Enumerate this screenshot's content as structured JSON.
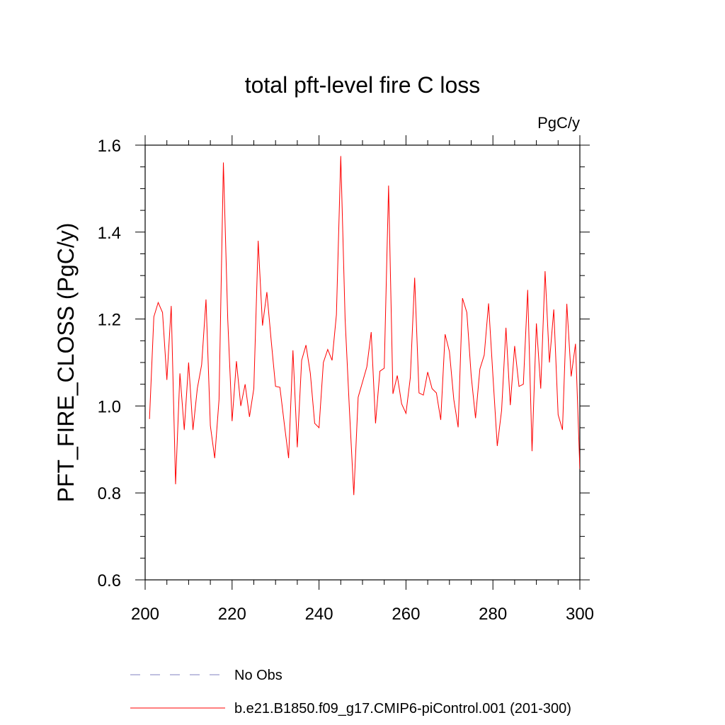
{
  "chart_data": {
    "type": "line",
    "title": "total pft-level fire C loss",
    "units_label": "PgC/y",
    "xlabel": "",
    "ylabel": "PFT_FIRE_CLOSS  (PgC/y)",
    "xlim": [
      200,
      300
    ],
    "ylim": [
      0.6,
      1.6
    ],
    "xticks": [
      200,
      220,
      240,
      260,
      280,
      300
    ],
    "xtick_labels": [
      "200",
      "220",
      "240",
      "260",
      "280",
      "300"
    ],
    "yticks": [
      0.6,
      0.8,
      1.0,
      1.2,
      1.4,
      1.6
    ],
    "ytick_labels": [
      "0.6",
      "0.8",
      "1.0",
      "1.2",
      "1.4",
      "1.6"
    ],
    "grid": false,
    "legend_position": "bottom",
    "series": [
      {
        "name": "No Obs",
        "color": "#8080c0",
        "dash": "dashed",
        "x": [],
        "values": []
      },
      {
        "name": "b.e21.B1850.f09_g17.CMIP6-piControl.001 (201-300)",
        "color": "#ff0000",
        "dash": "solid",
        "x": [
          201,
          202,
          203,
          204,
          205,
          206,
          207,
          208,
          209,
          210,
          211,
          212,
          213,
          214,
          215,
          216,
          217,
          218,
          219,
          220,
          221,
          222,
          223,
          224,
          225,
          226,
          227,
          228,
          229,
          230,
          231,
          232,
          233,
          234,
          235,
          236,
          237,
          238,
          239,
          240,
          241,
          242,
          243,
          244,
          245,
          246,
          247,
          248,
          249,
          250,
          251,
          252,
          253,
          254,
          255,
          256,
          257,
          258,
          259,
          260,
          261,
          262,
          263,
          264,
          265,
          266,
          267,
          268,
          269,
          270,
          271,
          272,
          273,
          274,
          275,
          276,
          277,
          278,
          279,
          280,
          281,
          282,
          283,
          284,
          285,
          286,
          287,
          288,
          289,
          290,
          291,
          292,
          293,
          294,
          295,
          296,
          297,
          298,
          299,
          300
        ],
        "values": [
          0.97,
          1.205,
          1.238,
          1.215,
          1.06,
          1.23,
          0.82,
          1.075,
          0.945,
          1.1,
          0.945,
          1.04,
          1.095,
          1.245,
          0.955,
          0.88,
          1.015,
          1.56,
          1.2,
          0.965,
          1.103,
          1.0,
          1.05,
          0.975,
          1.04,
          1.38,
          1.185,
          1.262,
          1.15,
          1.045,
          1.043,
          0.96,
          0.88,
          1.128,
          0.905,
          1.105,
          1.14,
          1.075,
          0.96,
          0.95,
          1.1,
          1.13,
          1.105,
          1.21,
          1.575,
          1.2,
          0.99,
          0.795,
          1.02,
          1.055,
          1.09,
          1.17,
          0.96,
          1.08,
          1.087,
          1.507,
          1.028,
          1.07,
          1.005,
          0.983,
          1.065,
          1.295,
          1.03,
          1.025,
          1.078,
          1.04,
          1.03,
          0.968,
          1.165,
          1.125,
          1.015,
          0.951,
          1.248,
          1.215,
          1.07,
          0.972,
          1.085,
          1.117,
          1.236,
          1.07,
          0.908,
          0.99,
          1.18,
          1.002,
          1.138,
          1.045,
          1.05,
          1.267,
          0.896,
          1.19,
          1.04,
          1.31,
          1.1,
          1.222,
          0.98,
          0.945,
          1.235,
          1.068,
          1.143,
          0.855
        ]
      }
    ]
  }
}
